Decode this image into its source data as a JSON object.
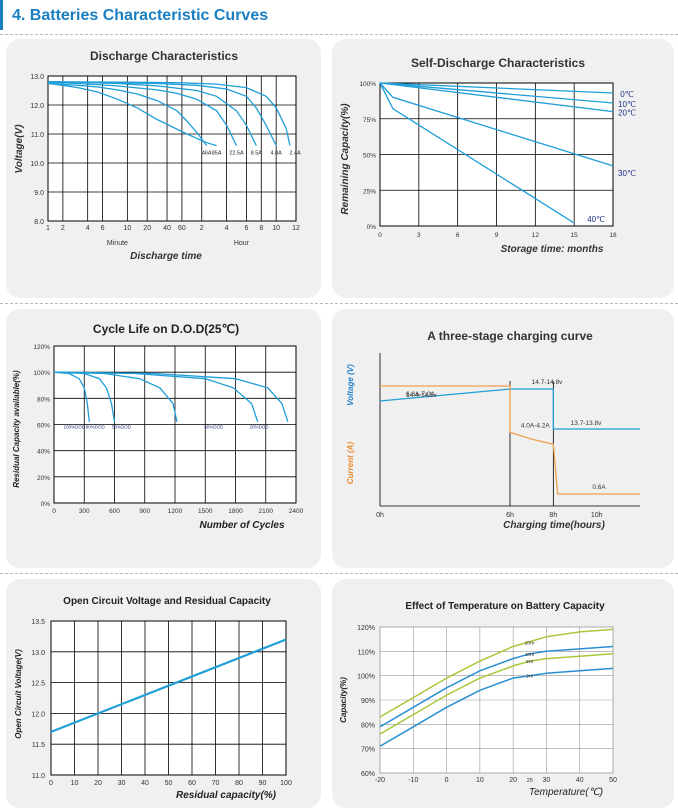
{
  "heading": "4.  Batteries Characteristic Curves",
  "chart_data": [
    {
      "type": "line",
      "title": "Discharge Characteristics",
      "ylabel": "Voltage(V)",
      "xlabel": "Discharge time",
      "x_group_labels": [
        "Minute",
        "Hour"
      ],
      "x_ticks": [
        "1",
        "2",
        "4",
        "6",
        "10",
        "20",
        "40",
        "60",
        "2",
        "4",
        "6",
        "8",
        "10",
        "12"
      ],
      "y_ticks": [
        "13.0",
        "12.0",
        "11.0",
        "10.0",
        "9.0",
        "8.0"
      ],
      "ylim": [
        8.0,
        13.0
      ],
      "series": [
        {
          "name": "85A",
          "x": [
            1,
            2,
            4,
            6,
            8,
            10,
            12,
            15,
            17,
            18
          ],
          "values": [
            12.75,
            12.7,
            12.6,
            12.45,
            12.2,
            11.9,
            11.5,
            11.0,
            10.7,
            10.6
          ]
        },
        {
          "name": "46A",
          "x": [
            1,
            2,
            4,
            6,
            8,
            10,
            12,
            14,
            15,
            16,
            17
          ],
          "values": [
            12.75,
            12.72,
            12.68,
            12.62,
            12.52,
            12.38,
            12.15,
            11.8,
            11.45,
            11.05,
            10.6
          ]
        },
        {
          "name": "22.5A",
          "x": [
            1,
            4,
            8,
            12,
            14,
            16,
            18,
            19,
            20
          ],
          "values": [
            12.78,
            12.74,
            12.66,
            12.52,
            12.4,
            12.2,
            11.8,
            11.3,
            10.6
          ]
        },
        {
          "name": "8.5A",
          "x": [
            1,
            4,
            8,
            12,
            16,
            18,
            20,
            21,
            22
          ],
          "values": [
            12.8,
            12.78,
            12.74,
            12.66,
            12.5,
            12.3,
            11.8,
            11.3,
            10.6
          ]
        },
        {
          "name": "4.8A",
          "x": [
            1,
            6,
            12,
            16,
            19,
            21,
            22,
            23,
            24
          ],
          "values": [
            12.8,
            12.78,
            12.74,
            12.68,
            12.55,
            12.3,
            11.9,
            11.3,
            10.6
          ]
        },
        {
          "name": "2.4A",
          "x": [
            1,
            8,
            14,
            18,
            21,
            23,
            24,
            25,
            25.4
          ],
          "values": [
            12.8,
            12.79,
            12.77,
            12.72,
            12.6,
            12.3,
            11.9,
            11.2,
            10.6
          ]
        }
      ]
    },
    {
      "type": "line",
      "title": "Self-Discharge Characteristics",
      "ylabel": "Remaining Capacity(%)",
      "xlabel": "Storage time: months",
      "x_ticks": [
        "0",
        "3",
        "6",
        "9",
        "12",
        "15",
        "18"
      ],
      "y_ticks": [
        "100%",
        "75%",
        "50%",
        "25%",
        "0%"
      ],
      "ylim": [
        0,
        100
      ],
      "series": [
        {
          "name": "0℃",
          "x": [
            0,
            18
          ],
          "values": [
            100,
            93
          ]
        },
        {
          "name": "10℃",
          "x": [
            0,
            18
          ],
          "values": [
            100,
            86
          ]
        },
        {
          "name": "20℃",
          "x": [
            0,
            18
          ],
          "values": [
            100,
            80
          ]
        },
        {
          "name": "30℃",
          "x": [
            0,
            1,
            18
          ],
          "values": [
            100,
            90,
            42
          ]
        },
        {
          "name": "40℃",
          "x": [
            0,
            1,
            15
          ],
          "values": [
            100,
            82,
            2
          ]
        }
      ]
    },
    {
      "type": "line",
      "title": "Cycle Life on D.O.D(25℃)",
      "ylabel": "Residual Capacity available(%)",
      "xlabel": "Number of Cycles",
      "x_ticks": [
        "0",
        "300",
        "600",
        "900",
        "1200",
        "1500",
        "1800",
        "2100",
        "2400"
      ],
      "y_ticks": [
        "120%",
        "100%",
        "80%",
        "60%",
        "40%",
        "20%",
        "0%"
      ],
      "ylim": [
        0,
        120
      ],
      "dod_labels": [
        "100%DOD",
        "80%DOD",
        "50%DOD",
        "30%DOD",
        "20%DOD"
      ],
      "series": [
        {
          "name": "100%DOD",
          "x": [
            0,
            150,
            250,
            300,
            330,
            350
          ],
          "values": [
            100,
            99,
            95,
            88,
            76,
            62
          ]
        },
        {
          "name": "80%DOD",
          "x": [
            0,
            300,
            450,
            520,
            570,
            600
          ],
          "values": [
            100,
            99,
            95,
            88,
            76,
            62
          ]
        },
        {
          "name": "50%DOD",
          "x": [
            0,
            500,
            850,
            1050,
            1180,
            1220
          ],
          "values": [
            100,
            99,
            95,
            88,
            76,
            62
          ]
        },
        {
          "name": "30%DOD",
          "x": [
            0,
            800,
            1500,
            1780,
            1960,
            2020
          ],
          "values": [
            100,
            99,
            95,
            88,
            76,
            62
          ]
        },
        {
          "name": "20%DOD",
          "x": [
            0,
            1000,
            1800,
            2120,
            2260,
            2320
          ],
          "values": [
            100,
            99,
            95,
            88,
            76,
            62
          ]
        }
      ]
    },
    {
      "type": "line",
      "title": "A three-stage charging curve",
      "ylabel_current": "Current (A)",
      "ylabel_voltage": "Voltage (V)",
      "xlabel": "Charging time(hours)",
      "x_ticks": [
        "0h",
        "6h",
        "8h",
        "10h"
      ],
      "annotations": [
        "14.7-14.8v",
        "14.4-14.5v",
        "13.7-13.8v",
        "6.8A-7.0A",
        "4.0A-4.2A",
        "0.6A"
      ],
      "series": [
        {
          "name": "Voltage",
          "x": [
            0,
            6,
            6,
            8,
            8,
            12
          ],
          "values": [
            14.45,
            14.75,
            14.75,
            14.75,
            13.75,
            13.75
          ]
        },
        {
          "name": "Current",
          "x": [
            0,
            6,
            6,
            7,
            8,
            8.2,
            12
          ],
          "values": [
            6.9,
            6.9,
            4.2,
            3.8,
            3.5,
            0.6,
            0.6
          ]
        }
      ]
    },
    {
      "type": "line",
      "title": "Open Circuit Voltage and Residual Capacity",
      "ylabel": "Open Circuit Voltage(V)",
      "xlabel": "Residual capacity(%)",
      "x_ticks": [
        "0",
        "10",
        "20",
        "30",
        "40",
        "50",
        "60",
        "70",
        "80",
        "90",
        "100"
      ],
      "y_ticks": [
        "13.5",
        "13.0",
        "12.5",
        "12.0",
        "11.5",
        "11.0"
      ],
      "xlim": [
        0,
        100
      ],
      "ylim": [
        11.0,
        13.5
      ],
      "series": [
        {
          "name": "OCV",
          "x": [
            0,
            100
          ],
          "values": [
            11.7,
            13.2
          ]
        }
      ]
    },
    {
      "type": "line",
      "title": "Effect of Temperature on Battery Capacity",
      "ylabel": "Capacity(%)",
      "xlabel": "Temperature(℃)",
      "x_ticks": [
        "-20",
        "-10",
        "0",
        "10",
        "20",
        "25",
        "30",
        "40",
        "50"
      ],
      "y_ticks": [
        "120%",
        "110%",
        "100%",
        "90%",
        "80%",
        "70%",
        "60%"
      ],
      "xlim": [
        -20,
        50
      ],
      "ylim": [
        60,
        120
      ],
      "series": [
        {
          "name": "20Hr",
          "x": [
            -20,
            -10,
            0,
            10,
            20,
            25,
            30,
            40,
            50
          ],
          "values": [
            83,
            91,
            99,
            106,
            112,
            114,
            116,
            118,
            119
          ]
        },
        {
          "name": "10Hr",
          "x": [
            -20,
            -10,
            0,
            10,
            20,
            25,
            30,
            40,
            50
          ],
          "values": [
            79,
            87,
            95,
            102,
            107,
            109,
            110,
            111,
            112
          ]
        },
        {
          "name": "5Hr",
          "x": [
            -20,
            -10,
            0,
            10,
            20,
            25,
            30,
            40,
            50
          ],
          "values": [
            76,
            84,
            92,
            99,
            104,
            106,
            107,
            108,
            109
          ]
        },
        {
          "name": "3Hr",
          "x": [
            -20,
            -10,
            0,
            10,
            20,
            25,
            30,
            40,
            50
          ],
          "values": [
            71,
            79,
            87,
            94,
            99,
            100,
            101,
            102,
            103
          ]
        }
      ]
    }
  ]
}
